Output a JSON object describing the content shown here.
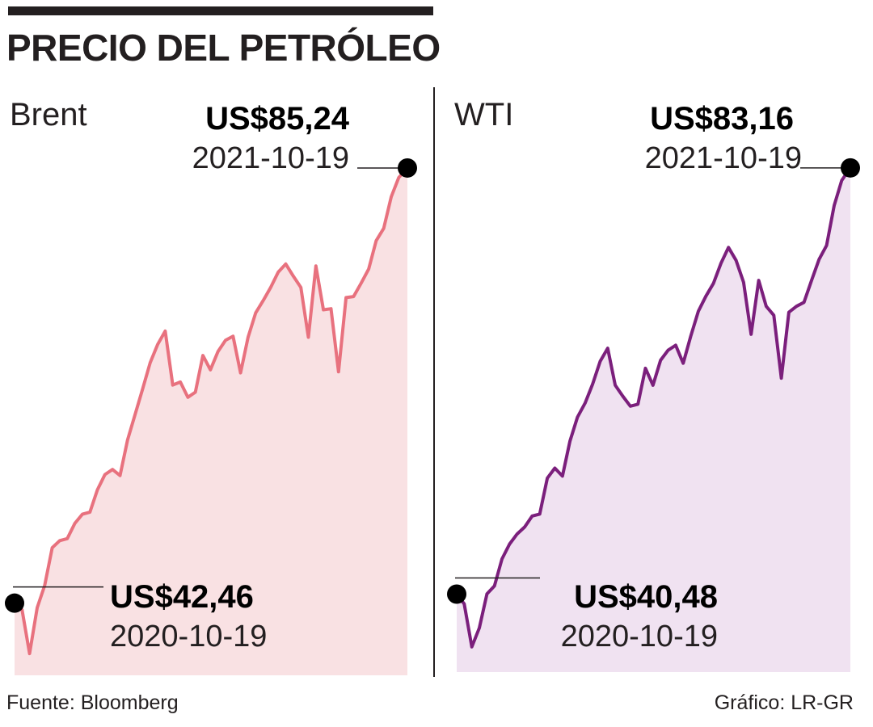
{
  "title": "PRECIO DEL PETRÓLEO",
  "source": "Fuente: Bloomberg",
  "credit": "Gráfico: LR-GR",
  "chart_data": [
    {
      "type": "area",
      "series_name": "Brent",
      "unit": "US$",
      "line_color": "#e8717e",
      "fill_color": "#f9e1e3",
      "ylim": [
        36,
        90
      ],
      "start": {
        "date": "2020-10-19",
        "value": 42.46,
        "label": "US$42,46"
      },
      "end": {
        "date": "2021-10-19",
        "value": 85.24,
        "label": "US$85,24"
      },
      "points": [
        [
          "2020-10-19",
          42.46
        ],
        [
          "2020-10-26",
          41.8
        ],
        [
          "2020-11-02",
          37.5
        ],
        [
          "2020-11-09",
          42.0
        ],
        [
          "2020-11-16",
          44.2
        ],
        [
          "2020-11-23",
          47.9
        ],
        [
          "2020-11-30",
          48.6
        ],
        [
          "2020-12-07",
          48.8
        ],
        [
          "2020-12-14",
          50.3
        ],
        [
          "2020-12-21",
          51.2
        ],
        [
          "2020-12-28",
          51.4
        ],
        [
          "2021-01-04",
          53.6
        ],
        [
          "2021-01-11",
          55.1
        ],
        [
          "2021-01-18",
          55.6
        ],
        [
          "2021-01-25",
          55.0
        ],
        [
          "2021-02-01",
          58.5
        ],
        [
          "2021-02-08",
          61.0
        ],
        [
          "2021-02-15",
          63.5
        ],
        [
          "2021-02-22",
          66.1
        ],
        [
          "2021-03-01",
          67.9
        ],
        [
          "2021-03-08",
          69.2
        ],
        [
          "2021-03-15",
          63.9
        ],
        [
          "2021-03-22",
          64.2
        ],
        [
          "2021-03-29",
          62.7
        ],
        [
          "2021-04-05",
          63.2
        ],
        [
          "2021-04-12",
          66.8
        ],
        [
          "2021-04-19",
          65.4
        ],
        [
          "2021-04-26",
          67.2
        ],
        [
          "2021-05-03",
          68.3
        ],
        [
          "2021-05-10",
          68.7
        ],
        [
          "2021-05-17",
          65.1
        ],
        [
          "2021-05-24",
          68.6
        ],
        [
          "2021-05-31",
          71.0
        ],
        [
          "2021-06-07",
          72.2
        ],
        [
          "2021-06-14",
          73.5
        ],
        [
          "2021-06-21",
          75.0
        ],
        [
          "2021-06-28",
          75.8
        ],
        [
          "2021-07-05",
          74.6
        ],
        [
          "2021-07-12",
          73.5
        ],
        [
          "2021-07-19",
          68.6
        ],
        [
          "2021-07-26",
          75.6
        ],
        [
          "2021-08-02",
          71.3
        ],
        [
          "2021-08-09",
          71.4
        ],
        [
          "2021-08-16",
          65.2
        ],
        [
          "2021-08-23",
          72.5
        ],
        [
          "2021-08-30",
          72.6
        ],
        [
          "2021-09-06",
          73.9
        ],
        [
          "2021-09-13",
          75.3
        ],
        [
          "2021-09-20",
          78.1
        ],
        [
          "2021-09-27",
          79.3
        ],
        [
          "2021-10-04",
          82.4
        ],
        [
          "2021-10-11",
          84.3
        ],
        [
          "2021-10-19",
          85.24
        ]
      ]
    },
    {
      "type": "area",
      "series_name": "WTI",
      "unit": "US$",
      "line_color": "#7b1f7c",
      "fill_color": "#f0e2f1",
      "ylim": [
        33,
        88
      ],
      "start": {
        "date": "2020-10-19",
        "value": 40.48,
        "label": "US$40,48"
      },
      "end": {
        "date": "2021-10-19",
        "value": 83.16,
        "label": "US$83,16"
      },
      "points": [
        [
          "2020-10-19",
          40.48
        ],
        [
          "2020-10-26",
          39.5
        ],
        [
          "2020-11-02",
          35.2
        ],
        [
          "2020-11-09",
          37.1
        ],
        [
          "2020-11-16",
          40.5
        ],
        [
          "2020-11-23",
          41.3
        ],
        [
          "2020-11-30",
          44.0
        ],
        [
          "2020-12-07",
          45.5
        ],
        [
          "2020-12-14",
          46.5
        ],
        [
          "2020-12-21",
          47.2
        ],
        [
          "2020-12-28",
          48.3
        ],
        [
          "2021-01-04",
          48.5
        ],
        [
          "2021-01-11",
          52.1
        ],
        [
          "2021-01-18",
          53.1
        ],
        [
          "2021-01-25",
          52.3
        ],
        [
          "2021-02-01",
          55.8
        ],
        [
          "2021-02-08",
          58.2
        ],
        [
          "2021-02-15",
          59.6
        ],
        [
          "2021-02-22",
          61.5
        ],
        [
          "2021-03-01",
          63.8
        ],
        [
          "2021-03-08",
          65.1
        ],
        [
          "2021-03-15",
          61.4
        ],
        [
          "2021-03-22",
          60.3
        ],
        [
          "2021-03-29",
          59.3
        ],
        [
          "2021-04-05",
          59.5
        ],
        [
          "2021-04-12",
          63.1
        ],
        [
          "2021-04-19",
          61.4
        ],
        [
          "2021-04-26",
          63.9
        ],
        [
          "2021-05-03",
          64.9
        ],
        [
          "2021-05-10",
          65.4
        ],
        [
          "2021-05-17",
          63.6
        ],
        [
          "2021-05-24",
          66.3
        ],
        [
          "2021-05-31",
          68.8
        ],
        [
          "2021-06-07",
          70.3
        ],
        [
          "2021-06-14",
          71.6
        ],
        [
          "2021-06-21",
          73.6
        ],
        [
          "2021-06-28",
          75.2
        ],
        [
          "2021-07-05",
          73.9
        ],
        [
          "2021-07-12",
          71.7
        ],
        [
          "2021-07-19",
          66.5
        ],
        [
          "2021-07-26",
          71.9
        ],
        [
          "2021-08-02",
          69.3
        ],
        [
          "2021-08-09",
          68.4
        ],
        [
          "2021-08-16",
          62.1
        ],
        [
          "2021-08-23",
          68.7
        ],
        [
          "2021-08-30",
          69.3
        ],
        [
          "2021-09-06",
          69.7
        ],
        [
          "2021-09-13",
          71.9
        ],
        [
          "2021-09-20",
          74.0
        ],
        [
          "2021-09-27",
          75.4
        ],
        [
          "2021-10-04",
          79.4
        ],
        [
          "2021-10-11",
          81.9
        ],
        [
          "2021-10-19",
          83.16
        ]
      ]
    }
  ]
}
